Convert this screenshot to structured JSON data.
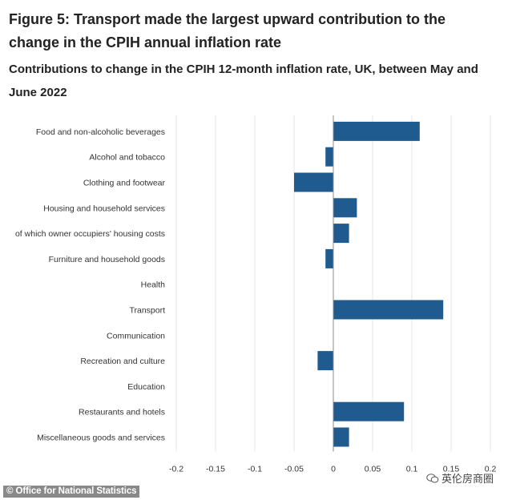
{
  "header": {
    "figure_title": "Figure 5: Transport made the largest upward contribution to the change in the CPIH annual inflation rate",
    "subtitle": "Contributions to change in the CPIH 12-month inflation rate, UK, between May and June 2022"
  },
  "footer": {
    "credit": "© Office for National Statistics",
    "watermark": "英伦房商圈"
  },
  "colors": {
    "bar": "#1f5b8e",
    "grid": "#e5e5e5",
    "zero_line": "#8a8a8a"
  },
  "chart_data": {
    "type": "bar",
    "orientation": "horizontal",
    "categories": [
      "Food and non-alcoholic beverages",
      "Alcohol and tobacco",
      "Clothing and footwear",
      "Housing and household services",
      "of which owner occupiers' housing costs",
      "Furniture and household goods",
      "Health",
      "Transport",
      "Communication",
      "Recreation and culture",
      "Education",
      "Restaurants and hotels",
      "Miscellaneous goods and services"
    ],
    "values": [
      0.11,
      -0.01,
      -0.05,
      0.03,
      0.02,
      -0.01,
      0,
      0.14,
      0,
      -0.02,
      0,
      0.09,
      0.02
    ],
    "xlim": [
      -0.2,
      0.2
    ],
    "xticks": [
      -0.2,
      -0.15,
      -0.1,
      -0.05,
      0,
      0.05,
      0.1,
      0.15,
      0.2
    ],
    "xtick_labels": [
      "-0.2",
      "-0.15",
      "-0.1",
      "-0.05",
      "0",
      "0.05",
      "0.1",
      "0.15",
      "0.2"
    ],
    "grid": true,
    "legend": false
  }
}
